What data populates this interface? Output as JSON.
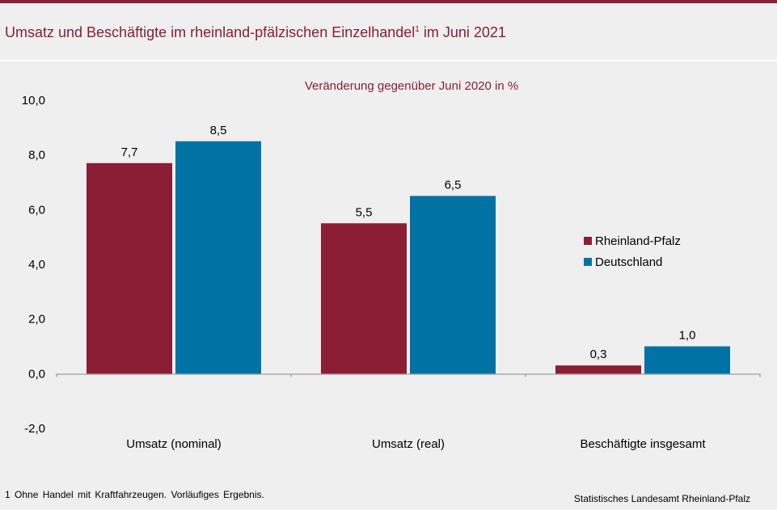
{
  "title": {
    "text": "Umsatz und Beschäftigte im rheinland-pfälzischen Einzelhandel",
    "footnote_mark": "1",
    "suffix": " im Juni 2021"
  },
  "colors": {
    "background": "#efefef",
    "accent": "#8b1e34",
    "rheinland_pfalz": "#8b1e34",
    "deutschland": "#0073a4"
  },
  "chart_data": {
    "type": "bar",
    "subtitle": "Veränderung gegenüber Juni 2020 in %",
    "categories": [
      "Umsatz (nominal)",
      "Umsatz (real)",
      "Beschäftigte insgesamt"
    ],
    "series": [
      {
        "name": "Rheinland-Pfalz",
        "values": [
          7.7,
          5.5,
          0.3
        ],
        "labels": [
          "7,7",
          "5,5",
          "0,3"
        ],
        "color": "#8b1e34"
      },
      {
        "name": "Deutschland",
        "values": [
          8.5,
          6.5,
          1.0
        ],
        "labels": [
          "8,5",
          "6,5",
          "1,0"
        ],
        "color": "#0073a4"
      }
    ],
    "ylim": [
      -2,
      10
    ],
    "yticks": [
      10,
      8,
      6,
      4,
      2,
      0,
      -2
    ],
    "ytick_labels": [
      "10,0",
      "8,0",
      "6,0",
      "4,0",
      "2,0",
      "0,0",
      "-2,0"
    ],
    "grid": false,
    "legend_position": "right"
  },
  "footnote": "1 Ohne Handel mit Kraftfahrzeugen. Vorläufiges Ergebnis.",
  "source": "Statistisches Landesamt Rheinland-Pfalz"
}
